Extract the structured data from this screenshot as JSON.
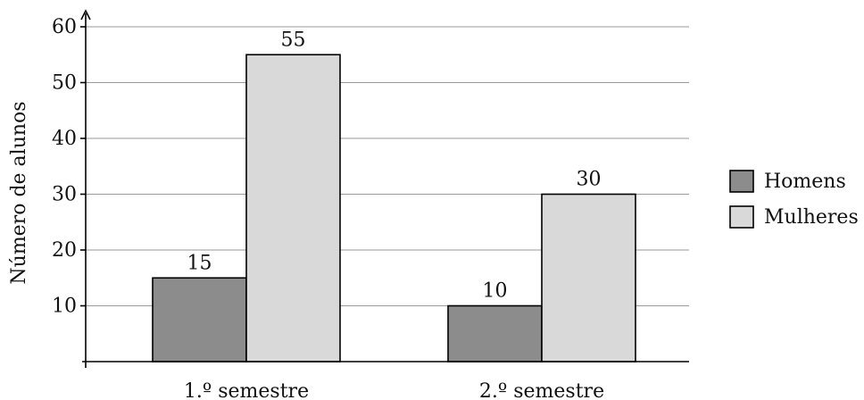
{
  "chart_data": {
    "type": "bar",
    "categories": [
      "1.º semestre",
      "2.º semestre"
    ],
    "series": [
      {
        "name": "Homens",
        "values": [
          15,
          10
        ],
        "color": "#8c8c8c"
      },
      {
        "name": "Mulheres",
        "values": [
          55,
          30
        ],
        "color": "#d9d9d9"
      }
    ],
    "ylabel": "Número de alunos",
    "ylim": [
      0,
      60
    ],
    "yticks": [
      10,
      20,
      30,
      40,
      50,
      60
    ],
    "grid": true,
    "legend_position": "right"
  }
}
